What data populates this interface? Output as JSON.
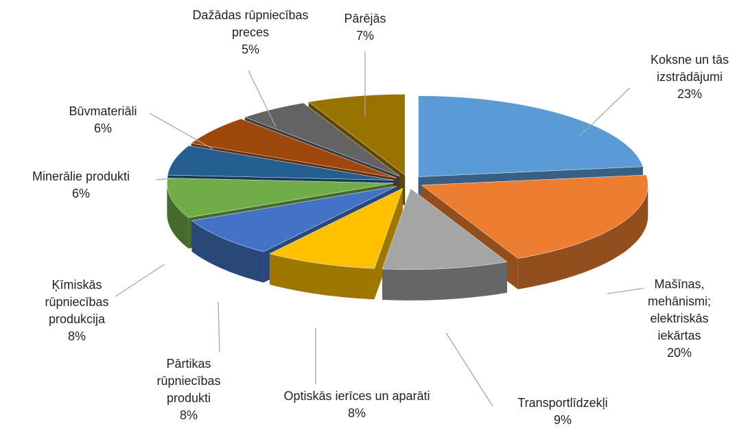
{
  "chart_data": {
    "type": "pie",
    "categories": [
      "Koksne un tās izstrādājumi",
      "Mašīnas, mehānismi; elektriskās iekārtas",
      "Transportlīdzekļi",
      "Optiskās ierīces un aparāti",
      "Pārtikas rūpniecības produkti",
      "Ķīmiskās rūpniecības produkcija",
      "Minerālie produkti",
      "Būvmateriāli",
      "Dažādas rūpniecības preces",
      "Pārējās"
    ],
    "values": [
      23,
      20,
      9,
      8,
      8,
      8,
      6,
      6,
      5,
      7
    ],
    "value_labels": [
      "23%",
      "20%",
      "9%",
      "8%",
      "8%",
      "8%",
      "6%",
      "6%",
      "5%",
      "7%"
    ],
    "colors": [
      "#5b9bd5",
      "#ed7d31",
      "#a5a5a5",
      "#ffc000",
      "#4472c4",
      "#70ad47",
      "#255e91",
      "#9e480e",
      "#636363",
      "#997300"
    ]
  }
}
